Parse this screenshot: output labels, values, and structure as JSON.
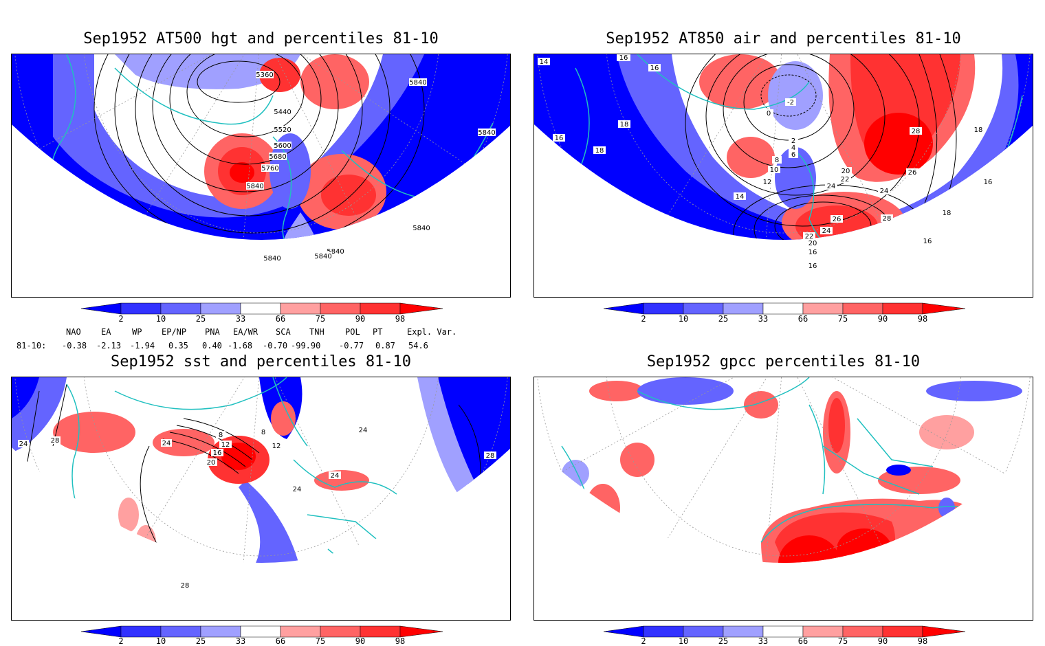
{
  "panels": [
    {
      "title": "Sep1952 AT500 hgt and percentiles 81-10",
      "contour_labels": [
        "5360",
        "5440",
        "5520",
        "5600",
        "5680",
        "5760",
        "5840",
        "5840",
        "5840",
        "5840",
        "5840",
        "5840",
        "5840"
      ]
    },
    {
      "title": "Sep1952 AT850 air and percentiles 81-10",
      "contour_labels": [
        "16",
        "14",
        "16",
        "18",
        "16",
        "18",
        "0",
        "-2",
        "2",
        "4",
        "6",
        "8",
        "10",
        "12",
        "14",
        "24",
        "22",
        "20",
        "24",
        "26",
        "28",
        "26",
        "24",
        "22",
        "20",
        "16",
        "16",
        "18",
        "18",
        "16",
        "16",
        "28"
      ]
    },
    {
      "title": "Sep1952 sst and percentiles 81-10",
      "contour_labels": [
        "24",
        "28",
        "24",
        "20",
        "16",
        "12",
        "8",
        "8",
        "12",
        "24",
        "24",
        "24",
        "28",
        "28"
      ]
    },
    {
      "title": "Sep1952 gpcc percentiles 81-10",
      "contour_labels": []
    }
  ],
  "colorbar": {
    "labels": [
      "2",
      "10",
      "25",
      "33",
      "66",
      "75",
      "90",
      "98"
    ],
    "colors": {
      "lt2": "#0000ff",
      "b2_10": "#3232ff",
      "b10_25": "#6464ff",
      "b25_33": "#a0a0ff",
      "b33_66": "#ffffff",
      "b66_75": "#ffa0a0",
      "b75_90": "#ff6464",
      "b90_98": "#ff3232",
      "gt98": "#ff0000"
    }
  },
  "indices": {
    "headers": [
      "NAO",
      "EA",
      "WP",
      "EP/NP",
      "PNA",
      "EA/WR",
      "SCA",
      "TNH",
      "POL",
      "PT",
      "Expl. Var."
    ],
    "row_label": "81-10:",
    "values": [
      "-0.38",
      "-2.13",
      "-1.94",
      "0.35",
      "0.40",
      "-1.68",
      "-0.70",
      "-99.90",
      "-0.77",
      "0.87",
      "54.6"
    ]
  },
  "colors": {
    "coast": "#20c0c0",
    "contour": "#000000"
  }
}
